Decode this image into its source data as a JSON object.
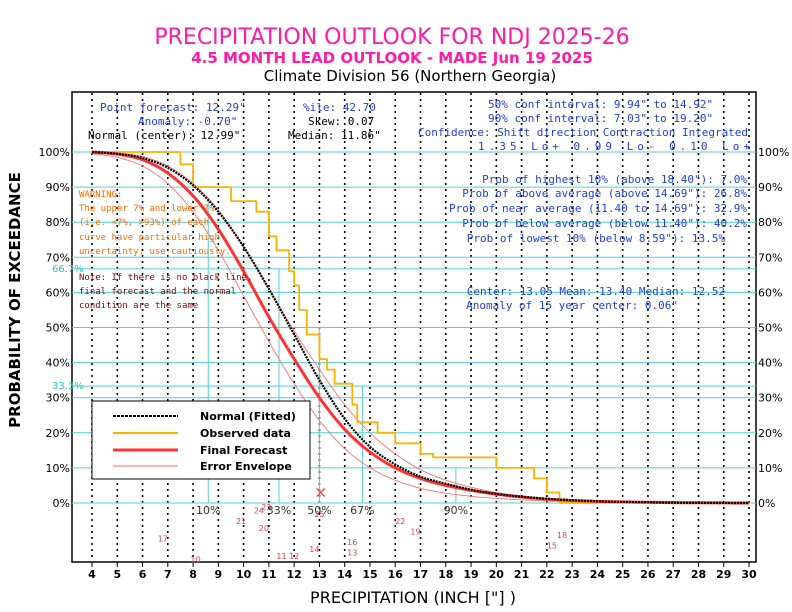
{
  "header": {
    "title": "PRECIPITATION OUTLOOK FOR NDJ 2025-26",
    "subtitle": "4.5 MONTH LEAD OUTLOOK - MADE Jun 19 2025",
    "division": "Climate Division 56 (Northern Georgia)"
  },
  "stats_left": {
    "point_forecast": "Point forecast: 12.29\"",
    "anomaly": "Anomaly: -0.70\"",
    "normal_center": "Normal (center): 12.99\"",
    "pctile": "%ile: 42.70",
    "skew": "Skew: 0.07",
    "median": "Median: 11.86\""
  },
  "stats_right": {
    "conf50": "50% conf interval: 9.94\" to 14.92\"",
    "conf90": "90% conf interval: 7.03\" to 19.20\"",
    "confidence_header": "Confidence: Shift direction   Contraction   Integrated",
    "confidence_values": "1.35 Lo+         0.99 Lo-      0.10 Lo+",
    "prob_highest": "Prob of highest 10% (above 18.40\"): 7.0%",
    "prob_above": "Prob of above average (above 14.69\"): 26.8%",
    "prob_near": "Prob of near average (11.40 to 14.69\"): 32.9%",
    "prob_below": "Prob of below average (below 11.40\"): 40.2%",
    "prob_lowest": "Prob of lowest 10% (below 8.59\"): 13.5%",
    "center_line": "Center: 13.05 Mean: 13.40 Median: 12.52",
    "anomaly15": "Anomaly of 15 year center: 0.06\""
  },
  "warning": {
    "lines": [
      "WARNING:",
      "The upper 7% and lower 7%",
      "(i.e. <7%, >93%) of each",
      "curve have particular high",
      "uncertainty; use cautiously."
    ]
  },
  "note": {
    "lines": [
      "Note: If there is no black line,",
      "final forecast and  the normal",
      "condition are the same"
    ]
  },
  "legend": {
    "items": [
      {
        "label": "Normal (Fitted)",
        "color": "#000000"
      },
      {
        "label": "Observed data",
        "color": "#ffb000"
      },
      {
        "label": "Final Forecast",
        "color": "#ff3333"
      },
      {
        "label": "Error Envelope",
        "color": "#ff6666"
      }
    ]
  },
  "cyan_marks": {
    "y_high": "66.7%",
    "y_low": "33.3%"
  },
  "chart_data": {
    "type": "line",
    "xlabel": "PRECIPITATION (INCH [\"] )",
    "ylabel": "PROBABILITY OF EXCEEDANCE",
    "xlim": [
      3.5,
      30
    ],
    "ylim": [
      -20,
      105
    ],
    "x_ticks": [
      "4",
      "5",
      "6",
      "7",
      "8",
      "9",
      "10",
      "11",
      "12",
      "13",
      "14",
      "15",
      "16",
      "17",
      "18",
      "19",
      "20",
      "21",
      "22",
      "23",
      "24",
      "25",
      "26",
      "27",
      "28",
      "29",
      "30"
    ],
    "y_ticks": [
      "0%",
      "10%",
      "20%",
      "30%",
      "40%",
      "50%",
      "60%",
      "70%",
      "80%",
      "90%",
      "100%"
    ],
    "percentile_labels": [
      {
        "label": "10%",
        "x": 8.6
      },
      {
        "label": "33%",
        "x": 11.4
      },
      {
        "label": "50%",
        "x": 13.0
      },
      {
        "label": "67%",
        "x": 14.7
      },
      {
        "label": "90%",
        "x": 18.4
      }
    ],
    "year_labels": [
      {
        "label": "17",
        "x": 6.8,
        "y": -11
      },
      {
        "label": "10",
        "x": 8.1,
        "y": -17
      },
      {
        "label": "21",
        "x": 9.9,
        "y": -6
      },
      {
        "label": "24",
        "x": 10.6,
        "y": -3
      },
      {
        "label": "23",
        "x": 10.9,
        "y": -2
      },
      {
        "label": "20",
        "x": 10.8,
        "y": -8
      },
      {
        "label": "11",
        "x": 11.5,
        "y": -16
      },
      {
        "label": "12",
        "x": 12.0,
        "y": -16
      },
      {
        "label": "14",
        "x": 12.8,
        "y": -14
      },
      {
        "label": "25",
        "x": 13.0,
        "y": -4
      },
      {
        "label": "16",
        "x": 14.3,
        "y": -12
      },
      {
        "label": "13",
        "x": 14.3,
        "y": -15
      },
      {
        "label": "22",
        "x": 16.2,
        "y": -6
      },
      {
        "label": "19",
        "x": 16.8,
        "y": -9
      },
      {
        "label": "15",
        "x": 22.2,
        "y": -13
      },
      {
        "label": "18",
        "x": 22.6,
        "y": -10
      }
    ],
    "series": [
      {
        "name": "Normal (Fitted)",
        "x": [
          4,
          5,
          6,
          7,
          8,
          9,
          10,
          11,
          12,
          13,
          14,
          15,
          16,
          17,
          18,
          19,
          20,
          21,
          22,
          23,
          24,
          25,
          26,
          27,
          28,
          29,
          30
        ],
        "values": [
          100,
          99.5,
          98.3,
          95.5,
          90.5,
          83,
          73,
          61,
          48,
          35,
          24,
          16,
          11,
          7.5,
          5.5,
          3.8,
          2.6,
          1.8,
          1.2,
          0.8,
          0.5,
          0.3,
          0.2,
          0.1,
          0.05,
          0.02,
          0
        ]
      },
      {
        "name": "Observed data",
        "x": [
          4,
          7.5,
          7.5,
          8.0,
          8.0,
          9.5,
          9.5,
          10.5,
          10.5,
          11.0,
          11.0,
          11.3,
          11.3,
          11.8,
          11.8,
          12.0,
          12.0,
          12.2,
          12.2,
          12.5,
          12.5,
          13.0,
          13.0,
          13.3,
          13.3,
          13.6,
          13.6,
          14.3,
          14.3,
          14.5,
          14.5,
          15.3,
          15.3,
          16.0,
          16.0,
          17.0,
          17.0,
          17.5,
          17.5,
          20.0,
          20.0,
          21.5,
          21.5,
          22.0,
          22.0,
          22.5,
          22.5,
          24
        ],
        "values": [
          100,
          100,
          96.5,
          96.5,
          90,
          90,
          86,
          86,
          83,
          83,
          76,
          76,
          72,
          72,
          66,
          66,
          62,
          62,
          55,
          55,
          48,
          48,
          41,
          41,
          38,
          38,
          34,
          34,
          28,
          28,
          23,
          23,
          20,
          20,
          17,
          17,
          14,
          14,
          13,
          13,
          10,
          10,
          7,
          7,
          3,
          3,
          0,
          0
        ]
      },
      {
        "name": "Final Forecast",
        "x": [
          4,
          5,
          6,
          7,
          8,
          9,
          10,
          11,
          12,
          13,
          14,
          15,
          16,
          17,
          18,
          19,
          20,
          21,
          22,
          23,
          24,
          25,
          26,
          27,
          28,
          29,
          30
        ],
        "values": [
          100,
          99.4,
          97.8,
          94,
          87.5,
          78,
          66,
          53,
          41,
          30,
          21,
          14.5,
          10,
          7,
          5,
          3.6,
          2.5,
          1.7,
          1.1,
          0.7,
          0.45,
          0.3,
          0.2,
          0.1,
          0.05,
          0.02,
          0
        ]
      },
      {
        "name": "Error Envelope Upper",
        "x": [
          4,
          5,
          6,
          7,
          8,
          9,
          10,
          11,
          12,
          13,
          14,
          15,
          16,
          17,
          18,
          19,
          20,
          21,
          22,
          23,
          24,
          25,
          26,
          27,
          28,
          29,
          30
        ],
        "values": [
          100,
          99.7,
          98.7,
          96,
          91,
          83.5,
          73,
          61,
          49,
          38,
          28,
          20,
          14,
          9.5,
          6.5,
          4.5,
          3,
          2,
          1.3,
          0.8,
          0.5,
          0.3,
          0.2,
          0.1,
          0.05,
          0.02,
          0
        ]
      },
      {
        "name": "Error Envelope Lower",
        "x": [
          4,
          5,
          6,
          7,
          8,
          9,
          10,
          11,
          12,
          13,
          14,
          15,
          16,
          17,
          18,
          19,
          20,
          21,
          22,
          23,
          24,
          25,
          26,
          27,
          28,
          29,
          30
        ],
        "values": [
          99.5,
          98.5,
          96,
          91,
          83,
          72,
          59,
          46,
          34,
          23.5,
          15.5,
          10,
          6.5,
          4.2,
          2.8,
          1.9,
          1.3,
          0.9,
          0.6,
          0.4,
          0.25,
          0.15,
          0.1,
          0.05,
          0.02,
          0.01,
          0
        ]
      }
    ]
  }
}
